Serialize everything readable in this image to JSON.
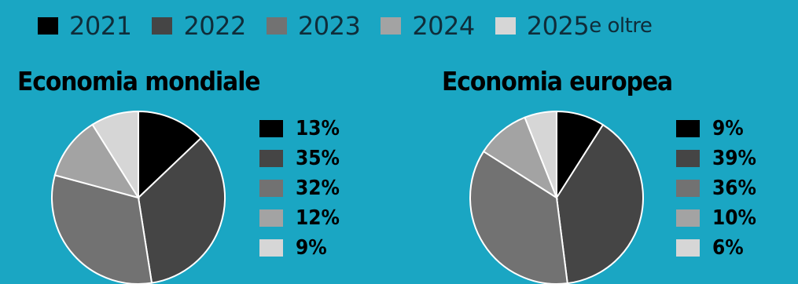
{
  "colors": {
    "background": "#1aa6c3",
    "c2021": "#000000",
    "c2022": "#454545",
    "c2023": "#727272",
    "c2024": "#a3a3a3",
    "c2025": "#d6d6d6"
  },
  "legend": [
    {
      "label": "2021",
      "color": "#000000"
    },
    {
      "label": "2022",
      "color": "#454545"
    },
    {
      "label": "2023",
      "color": "#727272"
    },
    {
      "label": "2024",
      "color": "#a3a3a3"
    },
    {
      "label": "2025",
      "suffix": " e oltre",
      "color": "#d6d6d6"
    }
  ],
  "chart_data": [
    {
      "type": "pie",
      "title": "Economia mondiale",
      "categories": [
        "2021",
        "2022",
        "2023",
        "2024",
        "2025 e oltre"
      ],
      "values": [
        13,
        35,
        32,
        12,
        9
      ],
      "labels": [
        "13%",
        "35%",
        "32%",
        "12%",
        "9%"
      ]
    },
    {
      "type": "pie",
      "title": "Economia europea",
      "categories": [
        "2021",
        "2022",
        "2023",
        "2024",
        "2025 e oltre"
      ],
      "values": [
        9,
        39,
        36,
        10,
        6
      ],
      "labels": [
        "9%",
        "39%",
        "36%",
        "10%",
        "6%"
      ]
    }
  ]
}
